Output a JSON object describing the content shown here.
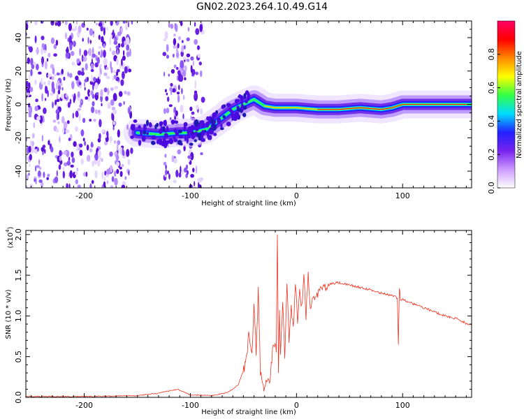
{
  "title": "GN02.2023.264.10.49.G14",
  "chart_data": [
    {
      "type": "heatmap",
      "xlabel": "Height of straight line (km)",
      "ylabel": "Frequency (Hz)",
      "xlim": [
        -255,
        165
      ],
      "ylim": [
        -50,
        50
      ],
      "x_ticks": [
        -200,
        -100,
        0,
        100
      ],
      "y_ticks": [
        -40,
        -20,
        0,
        20,
        40
      ],
      "colorbar": {
        "label": "Normalized spectral amplitude",
        "range": [
          0.0,
          1.0
        ],
        "ticks": [
          "0.0",
          "0.2",
          "0.4",
          "0.6",
          "0.8"
        ],
        "colors": [
          "#ffffff",
          "#cc99ff",
          "#7722ee",
          "#2222ff",
          "#00ddff",
          "#33ff44",
          "#ffff00",
          "#ff8800",
          "#ff0000",
          "#ff0066"
        ]
      },
      "ridge": {
        "x": [
          -150,
          -130,
          -110,
          -100,
          -85,
          -70,
          -60,
          -50,
          -40,
          -30,
          -20,
          -10,
          0,
          20,
          40,
          60,
          80,
          90,
          100,
          120,
          140,
          165
        ],
        "frequency": [
          -17,
          -18,
          -17,
          -17,
          -15,
          -8,
          -3,
          0,
          3,
          -1,
          -2,
          -2,
          -2,
          -3,
          -3,
          -2,
          -3,
          -2,
          0,
          0,
          0,
          0
        ]
      }
    },
    {
      "type": "line",
      "xlabel": "Height of straight line (km)",
      "ylabel": "SNR (10 * v/v)",
      "y_multiplier": "(x10",
      "y_multiplier_exp": "4",
      "xlim": [
        -255,
        165
      ],
      "ylim": [
        0,
        2.05
      ],
      "x_ticks": [
        -200,
        -100,
        0,
        100
      ],
      "y_ticks": [
        "0.0",
        "0.5",
        "1.0",
        "1.5",
        "2.0"
      ],
      "color": "#ee3322",
      "series": [
        {
          "x": [
            -255,
            -200,
            -150,
            -130,
            -120,
            -112,
            -100,
            -80,
            -65,
            -55,
            -48,
            -45,
            -42,
            -40,
            -38,
            -36,
            -34,
            -32,
            -30,
            -28,
            -25,
            -22,
            -19,
            -18,
            -17,
            -16,
            -15,
            -13,
            -11,
            -9,
            -7,
            -5,
            -3,
            -1,
            1,
            3,
            5,
            7,
            9,
            11,
            13,
            15,
            17,
            20,
            25,
            30,
            35,
            40,
            45,
            50,
            60,
            70,
            80,
            90,
            95,
            96,
            97,
            98,
            100,
            110,
            120,
            130,
            140,
            150,
            165
          ],
          "y": [
            0.01,
            0.01,
            0.02,
            0.05,
            0.08,
            0.1,
            0.03,
            0.02,
            0.06,
            0.15,
            0.4,
            0.75,
            0.5,
            1.2,
            0.55,
            1.3,
            0.3,
            0.2,
            0.1,
            0.2,
            0.15,
            0.7,
            0.6,
            2.05,
            0.25,
            1.1,
            0.5,
            1.2,
            0.45,
            1.45,
            0.7,
            1.1,
            0.85,
            1.4,
            0.9,
            1.3,
            1.1,
            1.5,
            1.0,
            1.55,
            1.05,
            1.2,
            1.25,
            1.28,
            1.35,
            1.38,
            1.4,
            1.41,
            1.4,
            1.38,
            1.35,
            1.32,
            1.28,
            1.25,
            1.22,
            0.65,
            1.35,
            1.2,
            1.2,
            1.15,
            1.1,
            1.05,
            1.0,
            0.97,
            0.88
          ]
        }
      ]
    }
  ]
}
